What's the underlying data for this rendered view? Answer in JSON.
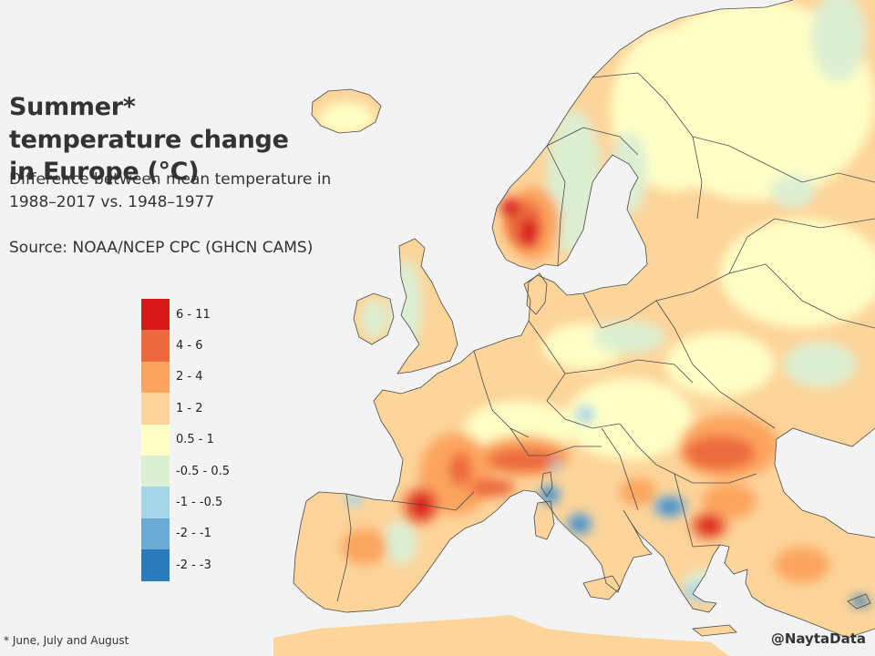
{
  "title": "Summer* temperature change in Europe (°C)",
  "subtitle": "Difference between mean temperature in 1988–2017 vs. 1948–1977",
  "source": "Source: NOAA/NCEP CPC (GHCN CAMS)",
  "legend": {
    "items": [
      {
        "label": "6 - 11",
        "color": "#d7191c"
      },
      {
        "label": "4 - 6",
        "color": "#ec6a3d"
      },
      {
        "label": "2 - 4",
        "color": "#fca55e"
      },
      {
        "label": "1 - 2",
        "color": "#fdd49a"
      },
      {
        "label": "0.5 - 1",
        "color": "#ffffc6"
      },
      {
        "label": "-0.5 - 0.5",
        "color": "#dcefd2"
      },
      {
        "label": "-1 - -0.5",
        "color": "#a7d5e8"
      },
      {
        "label": "-2 - -1",
        "color": "#6aaad3"
      },
      {
        "label": "-2 - -3",
        "color": "#2b7bba"
      }
    ]
  },
  "footnote": "* June, July and August",
  "credit": "@NaytaData",
  "colors": {
    "background": "#f3f3f3",
    "land_default": "#fdd49a",
    "border": "#4a4a4a"
  }
}
